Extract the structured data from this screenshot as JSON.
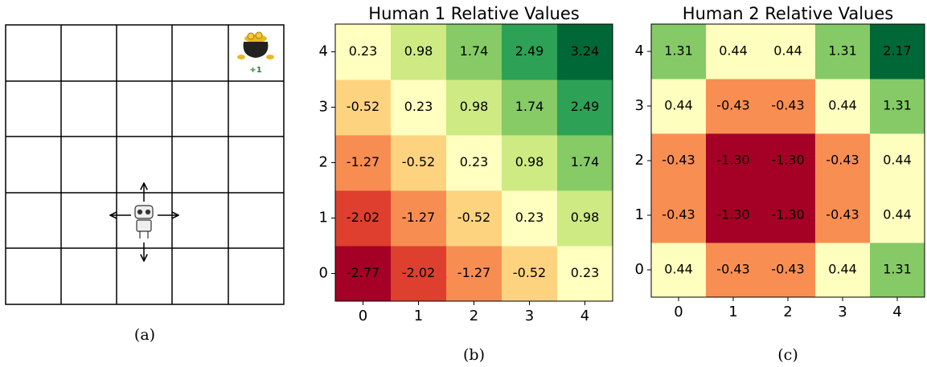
{
  "gridworld": {
    "reward_label": "+1",
    "caption": "(a)"
  },
  "chart_data": [
    {
      "type": "heatmap",
      "title": "Human 1 Relative Values",
      "caption": "(b)",
      "colormap": "RdYlGn",
      "x": [
        0,
        1,
        2,
        3,
        4
      ],
      "y": [
        0,
        1,
        2,
        3,
        4
      ],
      "values": [
        [
          -2.77,
          -2.02,
          -1.27,
          -0.52,
          0.23
        ],
        [
          -2.02,
          -1.27,
          -0.52,
          0.23,
          0.98
        ],
        [
          -1.27,
          -0.52,
          0.23,
          0.98,
          1.74
        ],
        [
          -0.52,
          0.23,
          0.98,
          1.74,
          2.49
        ],
        [
          0.23,
          0.98,
          1.74,
          2.49,
          3.24
        ]
      ]
    },
    {
      "type": "heatmap",
      "title": "Human 2 Relative Values",
      "caption": "(c)",
      "colormap": "RdYlGn",
      "x": [
        0,
        1,
        2,
        3,
        4
      ],
      "y": [
        0,
        1,
        2,
        3,
        4
      ],
      "values": [
        [
          0.44,
          -0.43,
          -0.43,
          0.44,
          1.31
        ],
        [
          -0.43,
          -1.3,
          -1.3,
          -0.43,
          0.44
        ],
        [
          -0.43,
          -1.3,
          -1.3,
          -0.43,
          0.44
        ],
        [
          0.44,
          -0.43,
          -0.43,
          0.44,
          1.31
        ],
        [
          1.31,
          0.44,
          0.44,
          1.31,
          2.17
        ]
      ],
      "value_labels": [
        [
          "0.44",
          "-0.43",
          "-0.43",
          "0.44",
          "1.31"
        ],
        [
          "-0.43",
          "-1.30",
          "-1.30",
          "-0.43",
          "0.44"
        ],
        [
          "-0.43",
          "-1.30",
          "-1.30",
          "-0.43",
          "0.44"
        ],
        [
          "0.44",
          "-0.43",
          "-0.43",
          "0.44",
          "1.31"
        ],
        [
          "1.31",
          "0.44",
          "0.44",
          "1.31",
          "2.17"
        ]
      ]
    }
  ]
}
